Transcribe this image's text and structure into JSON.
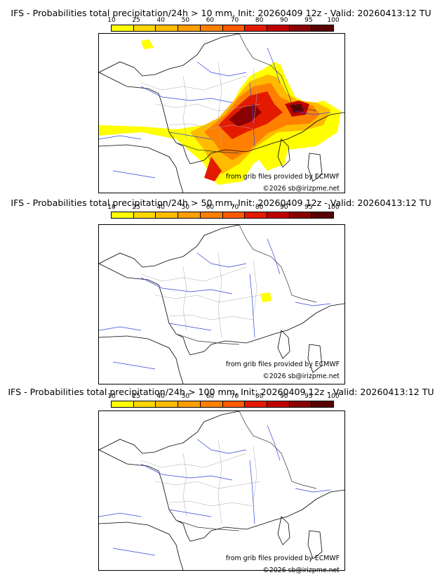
{
  "legend": {
    "labels": [
      "10",
      "25",
      "40",
      "50",
      "60",
      "70",
      "80",
      "90",
      "95",
      "100"
    ],
    "colors": [
      "#ffff00",
      "#ffd700",
      "#ffbb00",
      "#ff9e00",
      "#ff8000",
      "#ff5a00",
      "#e41a00",
      "#c00000",
      "#8b0000",
      "#5a0000"
    ]
  },
  "credits": {
    "grib": "from grib files provided by ECMWF",
    "copyright": "©2026 sb@irizpme.net"
  },
  "panels": [
    {
      "title": "IFS - Probabilities total precipitation/24h > 10 mm, Init: 20260409 12z - Valid: 20260413:12 TU"
    },
    {
      "title": "IFS - Probabilities total precipitation/24h > 50 mm, Init: 20260409 12z - Valid: 20260413:12 TU"
    },
    {
      "title": "IFS - Probabilities total precipitation/24h > 100 mm, Init: 20260409 12z - Valid: 20260413:12 TU"
    }
  ]
}
